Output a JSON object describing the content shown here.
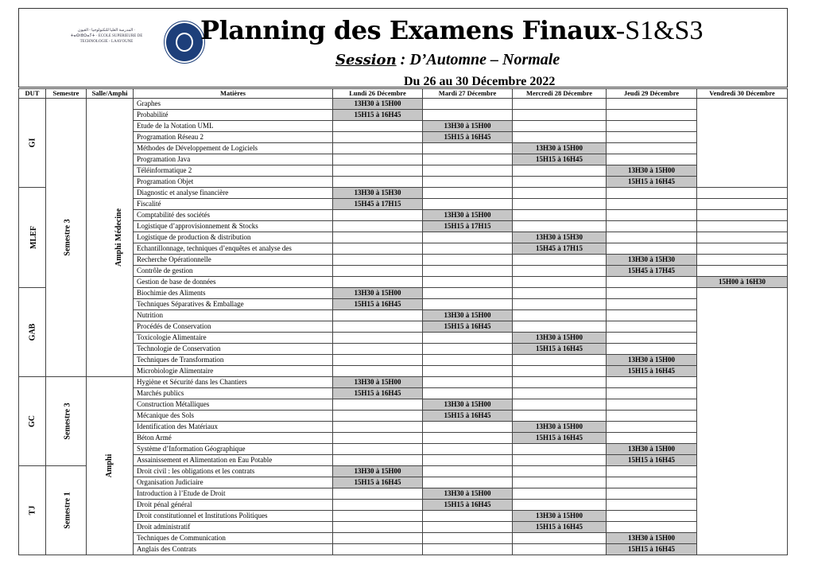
{
  "header": {
    "logo_text": "المدرسة العليا للتكنولوجيا - العيون · ⵜⴰⵙⵏⵓⵔⴰⵢⵜ · ECOLE SUPERIEURE DE TECHNOLOGIE - LAAYOUNE",
    "title_bold": "Planning des Examens Finaux",
    "title_suffix": "-S1&S3",
    "session_label": "Session",
    "session_value": " : D’Automne – Normale",
    "dates": "Du 26  au 30 Décembre 2022"
  },
  "columns": [
    "DUT",
    "Semestre",
    "Salle/Amphi",
    "Matières",
    "Lundi 26 Décembre",
    "Mardi 27 Décembre",
    "Mercredi 28 Décembre",
    "Jeudi 29 Décembre",
    "Vendredi 30 Décembre"
  ],
  "semestres": [
    {
      "label": "Semestre 3",
      "rows": 25
    },
    {
      "label": "Semestre 3",
      "rows": 8
    },
    {
      "label": "Semestre 1",
      "rows": 8
    }
  ],
  "salles": [
    {
      "label": "Amphi  Médecine",
      "rows": 25
    },
    {
      "label": "Amphi",
      "rows": 16
    }
  ],
  "groups": [
    {
      "dut": "GI",
      "rows": [
        [
          "Graphes",
          0,
          "13H30 à 15H00"
        ],
        [
          "Probabilité",
          0,
          "15H15 à 16H45"
        ],
        [
          "Etude de la Notation UML",
          1,
          "13H30 à 15H00"
        ],
        [
          "Programation Réseau 2",
          1,
          "15H15 à 16H45"
        ],
        [
          "Méthodes de Développement de Logiciels",
          2,
          "13H30 à 15H00"
        ],
        [
          "Programation Java",
          2,
          "15H15 à 16H45"
        ],
        [
          "Téléinformatique 2",
          3,
          "13H30 à 15H00"
        ],
        [
          "Programation Objet",
          3,
          "15H15 à 16H45"
        ]
      ]
    },
    {
      "dut": "MLEF",
      "rows": [
        [
          "Diagnostic et analyse financière",
          0,
          "13H30 à 15H30"
        ],
        [
          "Fiscalité",
          0,
          "15H45 à 17H15"
        ],
        [
          "Comptabilité des sociétés",
          1,
          "13H30 à 15H00"
        ],
        [
          "Logistique d’approvisionnement & Stocks",
          1,
          "15H15 à 17H15"
        ],
        [
          "Logistique de production & distribution",
          2,
          "13H30 à 15H30"
        ],
        [
          "Echantillonnage, techniques d’enquêtes et analyse des",
          2,
          "15H45 à 17H15"
        ],
        [
          "Recherche Opérationnelle",
          3,
          "13H30 à 15H30"
        ],
        [
          "Contrôle de gestion",
          3,
          "15H45 à 17H45"
        ],
        [
          "Gestion de base de données",
          4,
          "15H00 à 16H30"
        ]
      ]
    },
    {
      "dut": "GAB",
      "rows": [
        [
          "Biochimie des Aliments",
          0,
          "13H30 à 15H00"
        ],
        [
          "Techniques Séparatives & Emballage",
          0,
          "15H15 à 16H45"
        ],
        [
          "Nutrition",
          1,
          "13H30 à 15H00"
        ],
        [
          "Procédés de Conservation",
          1,
          "15H15 à 16H45"
        ],
        [
          "Toxicologie Alimentaire",
          2,
          "13H30 à 15H00"
        ],
        [
          "Technologie de Conservation",
          2,
          "15H15 à 16H45"
        ],
        [
          "Techniques de Transformation",
          3,
          "13H30 à 15H00"
        ],
        [
          "Microbiologie Alimentaire",
          3,
          "15H15 à 16H45"
        ]
      ]
    },
    {
      "dut": "GC",
      "rows": [
        [
          "Hygiène et Sécurité dans les Chantiers",
          0,
          "13H30 à 15H00"
        ],
        [
          "Marchés publics",
          0,
          "15H15 à 16H45"
        ],
        [
          "Construction Métalliques",
          1,
          "13H30 à 15H00"
        ],
        [
          "Mécanique des Sols",
          1,
          "15H15 à 16H45"
        ],
        [
          "Identification des Matériaux",
          2,
          "13H30 à 15H00"
        ],
        [
          "Béton Armé",
          2,
          "15H15 à 16H45"
        ],
        [
          "Système d’Information Géographique",
          3,
          "13H30 à 15H00"
        ],
        [
          "Assainissement et Alimentation en Eau Potable",
          3,
          "15H15 à 16H45"
        ]
      ]
    },
    {
      "dut": "TJ",
      "rows": [
        [
          "Droit civil : les obligations et les contrats",
          0,
          "13H30 à 15H00"
        ],
        [
          "Organisation Judiciaire",
          0,
          "15H15 à 16H45"
        ],
        [
          "Introduction à l’Etude de Droit",
          1,
          "13H30 à 15H00"
        ],
        [
          "Droit pénal général",
          1,
          "15H15 à 16H45"
        ],
        [
          "Droit constitutionnel et Institutions Politiques",
          2,
          "13H30 à 15H00"
        ],
        [
          "Droit administratif",
          2,
          "15H15 à 16H45"
        ],
        [
          "Techniques de Communication",
          3,
          "13H30 à 15H00"
        ],
        [
          "Anglais des Contrats",
          3,
          "15H15 à 16H45"
        ]
      ]
    }
  ],
  "colors": {
    "slot": "#c6c6c6"
  }
}
